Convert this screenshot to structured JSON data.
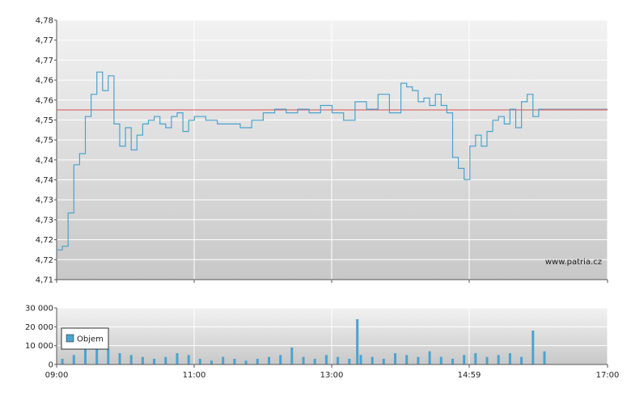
{
  "watermark": "www.patria.cz",
  "chart_data": [
    {
      "type": "line",
      "title": "",
      "xlabel": "",
      "ylabel": "",
      "ylim": [
        4.71,
        4.78
      ],
      "y_tick_labels": [
        "4,78",
        "4,77",
        "4,77",
        "4,76",
        "4,76",
        "4,75",
        "4,75",
        "4,74",
        "4,74",
        "4,73",
        "4,73",
        "4,72",
        "4,72",
        "4,71"
      ],
      "x_ticks": [
        "09:00",
        "11:00",
        "13:00",
        "14:59",
        "17:00"
      ],
      "grid": true,
      "reference_line": 4.7558,
      "colors": {
        "line": "#4aa3cf",
        "reference": "#d9534f"
      },
      "series": [
        {
          "x": [
            "09:00",
            "09:05",
            "09:10",
            "09:15",
            "09:20",
            "09:25",
            "09:30",
            "09:35",
            "09:40",
            "09:45",
            "09:50",
            "09:55",
            "10:00",
            "10:05",
            "10:10",
            "10:15",
            "10:20",
            "10:25",
            "10:30",
            "10:35",
            "10:40",
            "10:45",
            "10:50",
            "10:55",
            "11:00",
            "11:10",
            "11:20",
            "11:30",
            "11:40",
            "11:50",
            "12:00",
            "12:10",
            "12:20",
            "12:30",
            "12:40",
            "12:50",
            "13:00",
            "13:10",
            "13:20",
            "13:30",
            "13:40",
            "13:50",
            "14:00",
            "14:05",
            "14:10",
            "14:15",
            "14:20",
            "14:25",
            "14:30",
            "14:35",
            "14:40",
            "14:45",
            "14:50",
            "14:55",
            "15:00",
            "15:05",
            "15:10",
            "15:15",
            "15:20",
            "15:25",
            "15:30",
            "15:35",
            "15:40",
            "15:45",
            "15:50",
            "15:55",
            "16:00",
            "16:05"
          ],
          "y": [
            4.718,
            4.719,
            4.728,
            4.741,
            4.744,
            4.754,
            4.76,
            4.766,
            4.761,
            4.765,
            4.752,
            4.746,
            4.751,
            4.745,
            4.749,
            4.752,
            4.753,
            4.754,
            4.752,
            4.751,
            4.754,
            4.755,
            4.75,
            4.753,
            4.754,
            4.753,
            4.752,
            4.752,
            4.751,
            4.753,
            4.755,
            4.756,
            4.755,
            4.756,
            4.755,
            4.757,
            4.755,
            4.753,
            4.758,
            4.756,
            4.76,
            4.755,
            4.763,
            4.762,
            4.761,
            4.758,
            4.759,
            4.757,
            4.76,
            4.757,
            4.755,
            4.743,
            4.74,
            4.737,
            4.746,
            4.749,
            4.746,
            4.75,
            4.753,
            4.754,
            4.752,
            4.756,
            4.751,
            4.758,
            4.76,
            4.754,
            4.756,
            4.756
          ]
        }
      ]
    },
    {
      "type": "bar",
      "title": "",
      "xlabel": "",
      "ylabel": "",
      "ylim": [
        0,
        30000
      ],
      "y_tick_labels": [
        "30 000",
        "20 000",
        "10 000",
        "0"
      ],
      "x_ticks": [
        "09:00",
        "11:00",
        "13:00",
        "14:59",
        "17:00"
      ],
      "legend": {
        "label": "Objem",
        "placement": "top-left"
      },
      "colors": {
        "bar": "#4aa3cf"
      },
      "series": [
        {
          "name": "Objem",
          "x": [
            "09:05",
            "09:15",
            "09:25",
            "09:35",
            "09:45",
            "09:55",
            "10:05",
            "10:15",
            "10:25",
            "10:35",
            "10:45",
            "10:55",
            "11:05",
            "11:15",
            "11:25",
            "11:35",
            "11:45",
            "11:55",
            "12:05",
            "12:15",
            "12:25",
            "12:35",
            "12:45",
            "12:55",
            "13:05",
            "13:15",
            "13:22",
            "13:25",
            "13:35",
            "13:45",
            "13:55",
            "14:05",
            "14:15",
            "14:25",
            "14:35",
            "14:45",
            "14:55",
            "15:05",
            "15:15",
            "15:25",
            "15:35",
            "15:45",
            "15:55",
            "16:05"
          ],
          "values": [
            3000,
            5000,
            18000,
            12000,
            8000,
            6000,
            5000,
            4000,
            3000,
            4000,
            6000,
            5000,
            3000,
            2000,
            4000,
            3000,
            2000,
            3000,
            4000,
            5000,
            9000,
            4000,
            3000,
            5000,
            4000,
            3000,
            24000,
            5000,
            4000,
            3000,
            6000,
            5000,
            4000,
            7000,
            4000,
            3000,
            5000,
            6000,
            4000,
            5000,
            6000,
            4000,
            18000,
            7000
          ]
        }
      ]
    }
  ]
}
